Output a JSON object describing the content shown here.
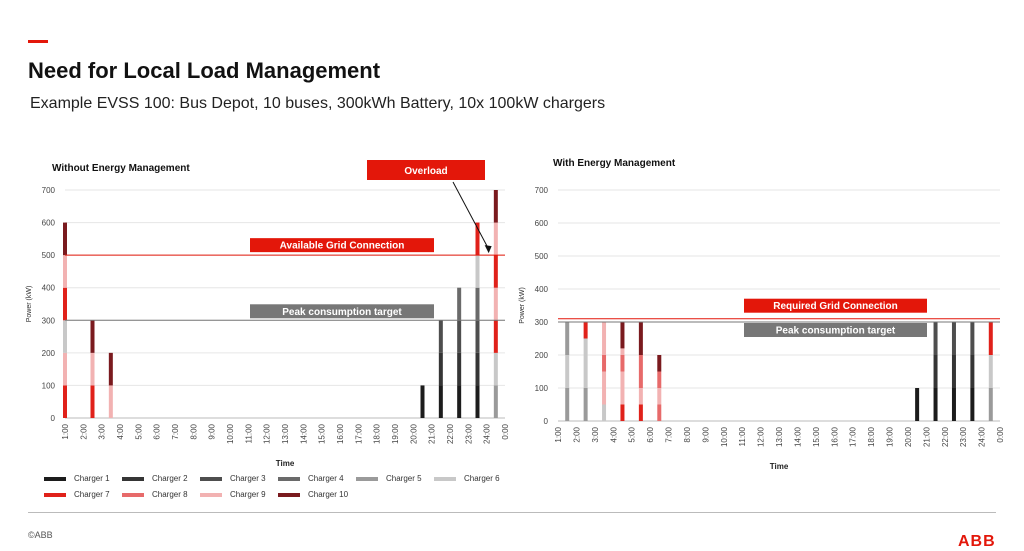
{
  "header": {
    "title": "Need for Local Load Management",
    "subtitle": "Example EVSS 100: Bus Depot, 10 buses, 300kWh Battery, 10x 100kW chargers"
  },
  "footer": {
    "copyright": "©ABB",
    "logo": "ABB"
  },
  "colors": {
    "accent": "#e3170a",
    "chargers": [
      "#1c1c1c",
      "#353535",
      "#4e4e4e",
      "#6a6a6a",
      "#9a9a9a",
      "#c8c8c8",
      "#e0211a",
      "#e76a6a",
      "#f2b2b2",
      "#7a1a1e"
    ]
  },
  "legend": [
    "Charger 1",
    "Charger 2",
    "Charger 3",
    "Charger 4",
    "Charger 5",
    "Charger 6",
    "Charger 7",
    "Charger 8",
    "Charger 9",
    "Charger 10"
  ],
  "chart_data": [
    {
      "type": "bar",
      "stacked": true,
      "title": "Without Energy Management",
      "xlabel": "Time",
      "ylabel": "Power (kW)",
      "ylim": [
        0,
        700
      ],
      "yticks": [
        0,
        100,
        200,
        300,
        400,
        500,
        600,
        700
      ],
      "grid": true,
      "categories": [
        "1:00",
        "2:00",
        "3:00",
        "4:00",
        "5:00",
        "6:00",
        "7:00",
        "8:00",
        "9:00",
        "10:00",
        "11:00",
        "12:00",
        "13:00",
        "14:00",
        "15:00",
        "16:00",
        "17:00",
        "18:00",
        "19:00",
        "20:00",
        "21:00",
        "22:00",
        "23:00",
        "24:00",
        "0:00"
      ],
      "bars": [
        {
          "x": 0,
          "segments": [
            {
              "charger": 7,
              "value": 100
            },
            {
              "charger": 9,
              "value": 100
            },
            {
              "charger": 6,
              "value": 100
            },
            {
              "charger": 7,
              "value": 100
            },
            {
              "charger": 9,
              "value": 100
            },
            {
              "charger": 10,
              "value": 100
            }
          ]
        },
        {
          "x": 1.5,
          "segments": [
            {
              "charger": 7,
              "value": 100
            },
            {
              "charger": 9,
              "value": 100
            },
            {
              "charger": 10,
              "value": 100
            }
          ]
        },
        {
          "x": 2.5,
          "segments": [
            {
              "charger": 9,
              "value": 100
            },
            {
              "charger": 10,
              "value": 100
            }
          ]
        },
        {
          "x": 19.5,
          "segments": [
            {
              "charger": 1,
              "value": 100
            }
          ]
        },
        {
          "x": 20.5,
          "segments": [
            {
              "charger": 1,
              "value": 100
            },
            {
              "charger": 2,
              "value": 100
            },
            {
              "charger": 3,
              "value": 100
            }
          ]
        },
        {
          "x": 21.5,
          "segments": [
            {
              "charger": 1,
              "value": 100
            },
            {
              "charger": 2,
              "value": 100
            },
            {
              "charger": 3,
              "value": 100
            },
            {
              "charger": 4,
              "value": 100
            }
          ]
        },
        {
          "x": 22.5,
          "segments": [
            {
              "charger": 1,
              "value": 100
            },
            {
              "charger": 2,
              "value": 100
            },
            {
              "charger": 3,
              "value": 100
            },
            {
              "charger": 4,
              "value": 100
            },
            {
              "charger": 6,
              "value": 100
            },
            {
              "charger": 7,
              "value": 100
            }
          ]
        },
        {
          "x": 23.5,
          "segments": [
            {
              "charger": 5,
              "value": 100
            },
            {
              "charger": 6,
              "value": 100
            },
            {
              "charger": 7,
              "value": 100
            },
            {
              "charger": 9,
              "value": 100
            },
            {
              "charger": 7,
              "value": 100
            },
            {
              "charger": 9,
              "value": 100
            },
            {
              "charger": 10,
              "value": 100
            }
          ]
        }
      ],
      "reference_lines": [
        {
          "value": 500,
          "label": "Available Grid Connection",
          "color": "#e3170a"
        },
        {
          "value": 300,
          "label": "Peak consumption target",
          "color": "#777777"
        }
      ],
      "callout": {
        "label": "Overload",
        "color": "#e3170a",
        "target_x": 23,
        "target_value": 500
      }
    },
    {
      "type": "bar",
      "stacked": true,
      "title": "With Energy Management",
      "xlabel": "Time",
      "ylabel": "Power (kW)",
      "ylim": [
        0,
        700
      ],
      "yticks": [
        0,
        100,
        200,
        300,
        400,
        500,
        600,
        700
      ],
      "grid": true,
      "categories": [
        "1:00",
        "2:00",
        "3:00",
        "4:00",
        "5:00",
        "6:00",
        "7:00",
        "8:00",
        "9:00",
        "10:00",
        "11:00",
        "12:00",
        "13:00",
        "14:00",
        "15:00",
        "16:00",
        "17:00",
        "18:00",
        "19:00",
        "20:00",
        "21:00",
        "22:00",
        "23:00",
        "24:00",
        "0:00"
      ],
      "bars": [
        {
          "x": 0.5,
          "segments": [
            {
              "charger": 5,
              "value": 100
            },
            {
              "charger": 6,
              "value": 100
            },
            {
              "charger": 5,
              "value": 100
            }
          ]
        },
        {
          "x": 1.5,
          "segments": [
            {
              "charger": 5,
              "value": 100
            },
            {
              "charger": 6,
              "value": 150
            },
            {
              "charger": 7,
              "value": 50
            }
          ]
        },
        {
          "x": 2.5,
          "segments": [
            {
              "charger": 6,
              "value": 50
            },
            {
              "charger": 9,
              "value": 100
            },
            {
              "charger": 8,
              "value": 50
            },
            {
              "charger": 9,
              "value": 100
            }
          ]
        },
        {
          "x": 3.5,
          "segments": [
            {
              "charger": 7,
              "value": 50
            },
            {
              "charger": 9,
              "value": 100
            },
            {
              "charger": 8,
              "value": 50
            },
            {
              "charger": 9,
              "value": 20
            },
            {
              "charger": 10,
              "value": 80
            }
          ]
        },
        {
          "x": 4.5,
          "segments": [
            {
              "charger": 7,
              "value": 50
            },
            {
              "charger": 9,
              "value": 50
            },
            {
              "charger": 8,
              "value": 100
            },
            {
              "charger": 10,
              "value": 100
            }
          ]
        },
        {
          "x": 5.5,
          "segments": [
            {
              "charger": 8,
              "value": 50
            },
            {
              "charger": 9,
              "value": 50
            },
            {
              "charger": 8,
              "value": 50
            },
            {
              "charger": 10,
              "value": 50
            }
          ]
        },
        {
          "x": 19.5,
          "segments": [
            {
              "charger": 1,
              "value": 100
            }
          ]
        },
        {
          "x": 20.5,
          "segments": [
            {
              "charger": 1,
              "value": 100
            },
            {
              "charger": 2,
              "value": 100
            },
            {
              "charger": 3,
              "value": 100
            }
          ]
        },
        {
          "x": 21.5,
          "segments": [
            {
              "charger": 1,
              "value": 100
            },
            {
              "charger": 2,
              "value": 100
            },
            {
              "charger": 3,
              "value": 100
            }
          ]
        },
        {
          "x": 22.5,
          "segments": [
            {
              "charger": 1,
              "value": 100
            },
            {
              "charger": 2,
              "value": 100
            },
            {
              "charger": 3,
              "value": 100
            }
          ]
        },
        {
          "x": 23.5,
          "segments": [
            {
              "charger": 5,
              "value": 100
            },
            {
              "charger": 6,
              "value": 100
            },
            {
              "charger": 7,
              "value": 100
            }
          ]
        }
      ],
      "reference_lines": [
        {
          "value": 310,
          "label": "Required Grid Connection",
          "color": "#e3170a"
        },
        {
          "value": 300,
          "label": "Peak consumption target",
          "color": "#777777"
        }
      ]
    }
  ]
}
